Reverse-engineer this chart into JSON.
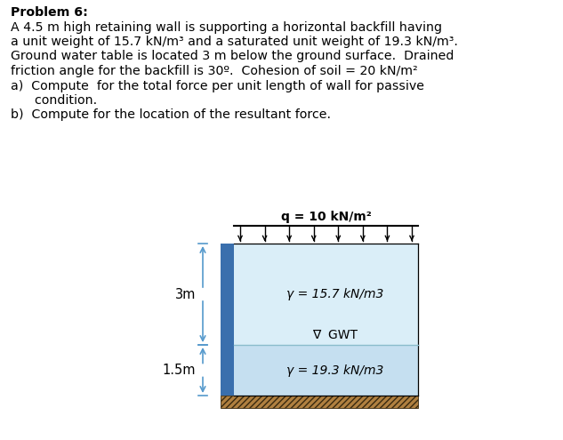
{
  "title": "Problem 6:",
  "problem_text": [
    "A 4.5 m high retaining wall is supporting a horizontal backfill having",
    "a unit weight of 15.7 kN/m³ and a saturated unit weight of 19.3 kN/m³.",
    "Ground water table is located 3 m below the ground surface.  Drained",
    "friction angle for the backfill is 30º.  Cohesion of soil = 20 kN/m²"
  ],
  "item_a": "a)  Compute  for the total force per unit length of wall for passive",
  "item_a2": "      condition.",
  "item_b": "b)  Compute for the location of the resultant force.",
  "q_label": "q = 10 kN/m²",
  "gamma1_label": "γ = 15.7 kN/m3",
  "gamma2_label": "γ = 19.3 kN/m3",
  "gwt_label": "∇  GWT",
  "dim_3m": "3m",
  "dim_15m": "1.5m",
  "wall_color": "#3a6fad",
  "soil_top_color": "#daeef8",
  "soil_bottom_color": "#c5dff0",
  "bg_color": "#ffffff",
  "text_color": "#000000"
}
